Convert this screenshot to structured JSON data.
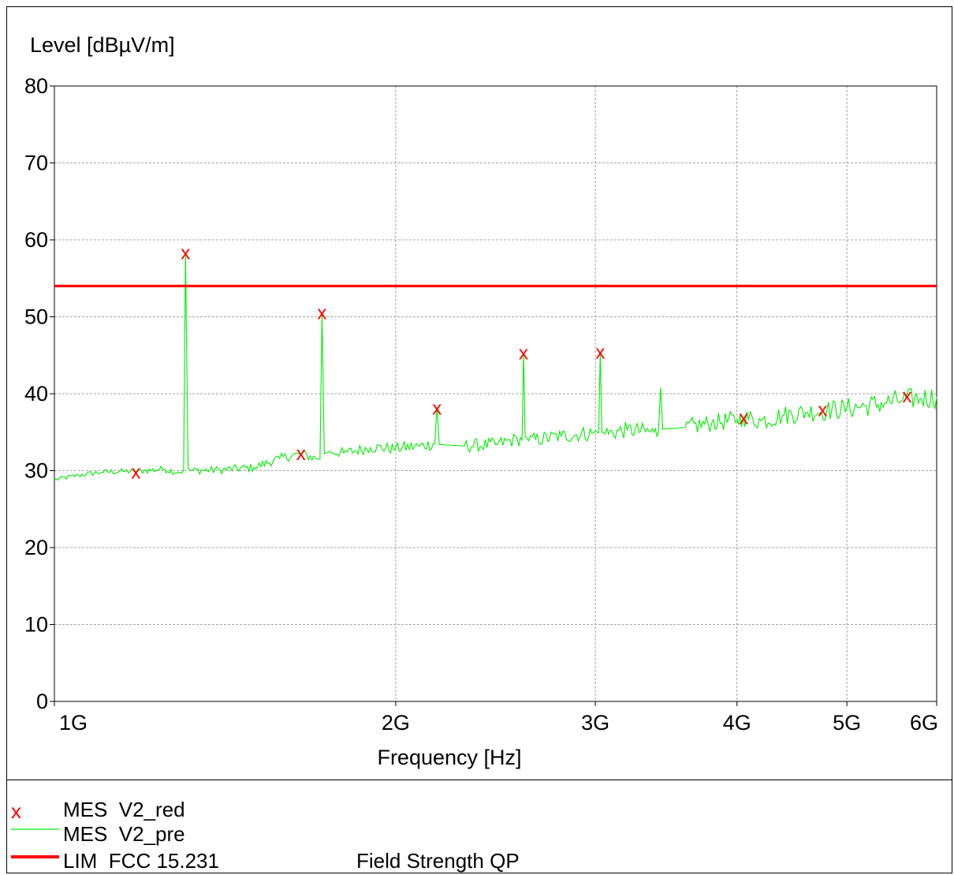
{
  "chart_data": {
    "type": "line",
    "title": "",
    "ylabel": "Level [dBµV/m]",
    "xlabel": "Frequency [Hz]",
    "x_scale": "log",
    "xlim_hz": [
      1000000000,
      6000000000
    ],
    "ylim": [
      0,
      80
    ],
    "yticks": [
      0,
      10,
      20,
      30,
      40,
      50,
      60,
      70,
      80
    ],
    "xticks": [
      {
        "value": 1000000000,
        "label": "1G"
      },
      {
        "value": 2000000000,
        "label": "2G"
      },
      {
        "value": 3000000000,
        "label": "3G"
      },
      {
        "value": 4000000000,
        "label": "4G"
      },
      {
        "value": 5000000000,
        "label": "5G"
      },
      {
        "value": 6000000000,
        "label": "6G"
      }
    ],
    "grid": true,
    "legend_position": "bottom",
    "series": [
      {
        "name": "MES  V2_pre",
        "kind": "line",
        "color": "#00ee00",
        "x": [
          1000000000,
          1050000000,
          1100000000,
          1150000000,
          1200000000,
          1250000000,
          1285000000,
          1300000000,
          1305000000,
          1312000000,
          1320000000,
          1400000000,
          1500000000,
          1580000000,
          1650000000,
          1700000000,
          1715000000,
          1722000000,
          1730000000,
          1750000000,
          1800000000,
          1900000000,
          2000000000,
          2100000000,
          2165000000,
          2175000000,
          2185000000,
          2300000000,
          2450000000,
          2560000000,
          2585000000,
          2593000000,
          2601000000,
          2620000000,
          2800000000,
          2990000000,
          3020000000,
          3030000000,
          3040000000,
          3060000000,
          3200000000,
          3380000000,
          3410000000,
          3425000000,
          3440000000,
          3600000000,
          3800000000,
          4000000000,
          4050000000,
          4200000000,
          4400000000,
          4600000000,
          4800000000,
          5000000000,
          5200000000,
          5400000000,
          5600000000,
          5800000000,
          6000000000
        ],
        "y": [
          28.8,
          29.4,
          29.8,
          29.9,
          30.0,
          30.2,
          29.8,
          30.0,
          58.4,
          30.3,
          30.0,
          30.1,
          30.4,
          31.6,
          32.2,
          31.6,
          31.5,
          50.4,
          32.2,
          32.5,
          32.3,
          33.0,
          32.9,
          33.2,
          33.5,
          38.3,
          33.4,
          33.2,
          33.4,
          34.1,
          34.0,
          45.3,
          34.5,
          33.9,
          34.5,
          34.9,
          34.9,
          45.4,
          35.0,
          34.8,
          35.3,
          35.0,
          34.9,
          40.8,
          35.4,
          35.6,
          36.2,
          36.6,
          36.9,
          36.5,
          37.2,
          37.6,
          37.8,
          38.1,
          38.4,
          38.8,
          39.2,
          39.4,
          39.6
        ]
      },
      {
        "name": "MES  V2_red",
        "kind": "markers",
        "marker": "x",
        "color": "#ff0000",
        "x": [
          1180000000,
          1305000000,
          1650000000,
          1722000000,
          2175000000,
          2593000000,
          3030000000,
          4055000000,
          4760000000,
          5650000000
        ],
        "y": [
          29.9,
          58.4,
          32.3,
          50.6,
          38.2,
          45.4,
          45.5,
          37.0,
          38.0,
          39.8
        ]
      },
      {
        "name": "LIM  FCC 15.231",
        "kind": "limit",
        "color": "#ff0000",
        "x": [
          1000000000,
          6000000000
        ],
        "y": [
          54.0,
          54.0
        ]
      }
    ]
  },
  "legend": {
    "items": [
      {
        "key": "marker-x",
        "symbol": "x",
        "label": "MES  V2_red",
        "extra": ""
      },
      {
        "key": "line-pre",
        "symbol": "",
        "label": "MES  V2_pre",
        "extra": ""
      },
      {
        "key": "line-limit",
        "symbol": "",
        "label": "LIM  FCC 15.231",
        "extra": "Field Strength QP"
      }
    ]
  }
}
